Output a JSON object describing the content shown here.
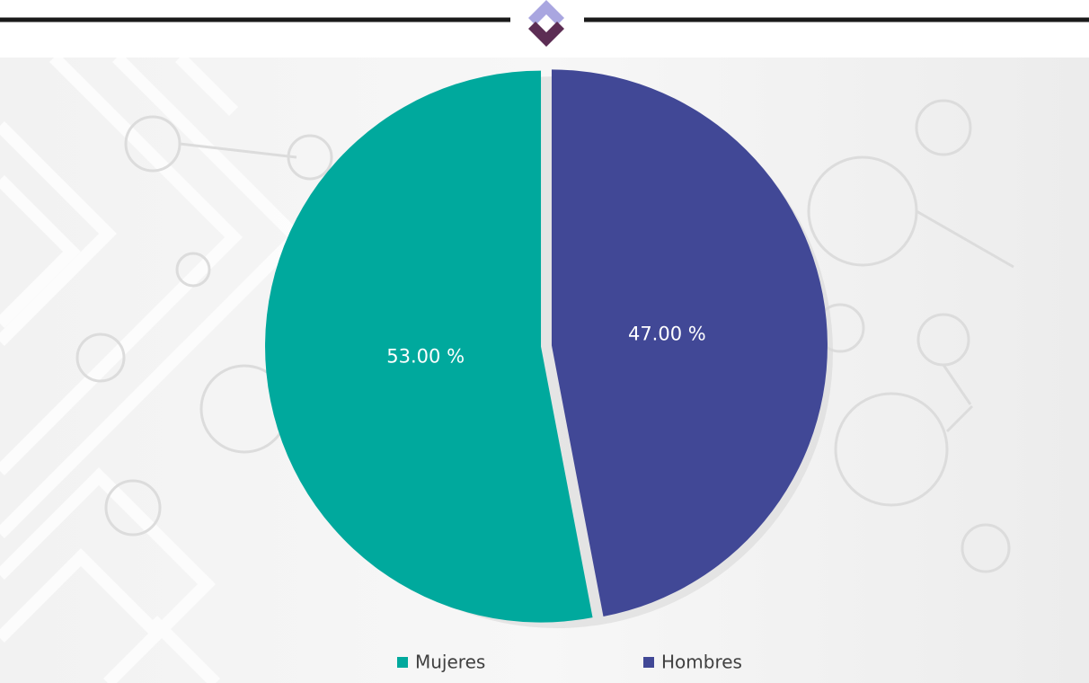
{
  "chart_data": {
    "type": "pie",
    "categories": [
      "Mujeres",
      "Hombres"
    ],
    "values": [
      53,
      47
    ],
    "value_labels": [
      "53.00 %",
      "47.00 %"
    ],
    "colors": [
      "#00a99d",
      "#414896"
    ],
    "legend": "bottom"
  }
}
